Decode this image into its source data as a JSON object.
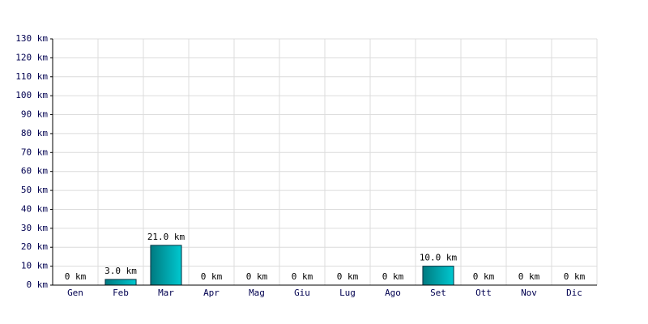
{
  "chart_data": {
    "type": "bar",
    "categories": [
      "Gen",
      "Feb",
      "Mar",
      "Apr",
      "Mag",
      "Giu",
      "Lug",
      "Ago",
      "Set",
      "Ott",
      "Nov",
      "Dic"
    ],
    "values": [
      0,
      3.0,
      21.0,
      0,
      0,
      0,
      0,
      0,
      10.0,
      0,
      0,
      0
    ],
    "value_labels": [
      "0 km",
      "3.0 km",
      "21.0 km",
      "0 km",
      "0 km",
      "0 km",
      "0 km",
      "0 km",
      "10.0 km",
      "0 km",
      "0 km",
      "0 km"
    ],
    "color": "#00c8d0",
    "ylim": [
      0,
      130
    ],
    "yticks": [
      {
        "value": 0,
        "label": "0 km"
      },
      {
        "value": 10,
        "label": "10 km"
      },
      {
        "value": 20,
        "label": "20 km"
      },
      {
        "value": 30,
        "label": "30 km"
      },
      {
        "value": 40,
        "label": "40 km"
      },
      {
        "value": 50,
        "label": "50 km"
      },
      {
        "value": 60,
        "label": "60 km"
      },
      {
        "value": 70,
        "label": "70 km"
      },
      {
        "value": 80,
        "label": "80 km"
      },
      {
        "value": 90,
        "label": "90 km"
      },
      {
        "value": 100,
        "label": "100 km"
      },
      {
        "value": 110,
        "label": "110 km"
      },
      {
        "value": 120,
        "label": "120 km"
      },
      {
        "value": 130,
        "label": "130 km"
      }
    ],
    "grid": true
  }
}
